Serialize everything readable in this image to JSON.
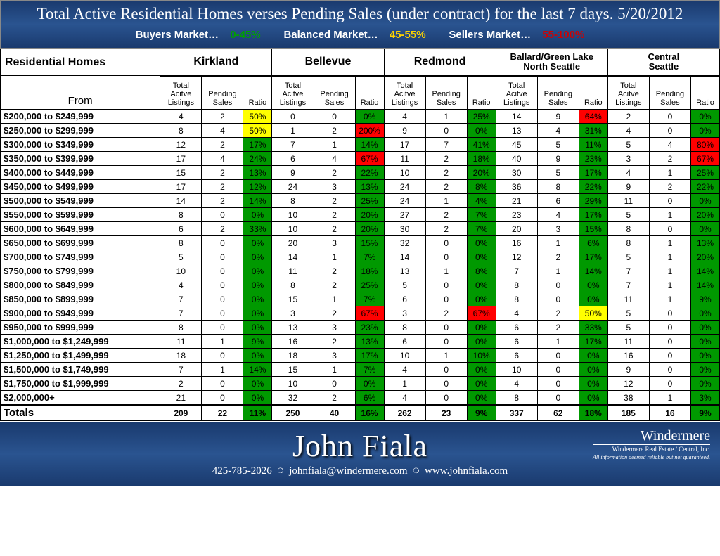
{
  "header": {
    "title": "Total Active Residential Homes verses Pending Sales (under contract) for the last 7 days. 5/20/2012",
    "buyers_label": "Buyers Market…",
    "buyers_range": "0-45%",
    "balanced_label": "Balanced Market…",
    "balanced_range": "45-55%",
    "sellers_label": "Sellers Market…",
    "sellers_range": "55-100%"
  },
  "table": {
    "corner": "Residential Homes",
    "from_label": "From",
    "sub_listings": "Total Acitve Listings",
    "sub_pending": "Pending Sales",
    "sub_ratio": "Ratio",
    "totals_label": "Totals",
    "regions": [
      {
        "name": "Kirkland"
      },
      {
        "name": "Bellevue"
      },
      {
        "name": "Redmond"
      },
      {
        "name": "Ballard/Green Lake North Seattle",
        "small": true
      },
      {
        "name": "Central Seattle",
        "small": true
      }
    ],
    "ranges": [
      "$200,000 to $249,999",
      "$250,000 to $299,999",
      "$300,000 to $349,999",
      "$350,000 to $399,999",
      "$400,000 to $449,999",
      "$450,000 to $499,999",
      "$500,000 to $549,999",
      "$550,000 to $599,999",
      "$600,000 to $649,999",
      "$650,000 to $699,999",
      "$700,000 to $749,999",
      "$750,000 to $799,999",
      "$800,000 to $849,999",
      "$850,000 to $899,999",
      "$900,000 to $949,999",
      "$950,000 to $999,999",
      "$1,000,000 to $1,249,999",
      "$1,250,000 to $1,499,999",
      "$1,500,000 to $1,749,999",
      "$1,750,000 to $1,999,999",
      "$2,000,000+"
    ],
    "data": [
      [
        [
          4,
          2,
          "50%",
          "y"
        ],
        [
          0,
          0,
          "0%",
          "g"
        ],
        [
          4,
          1,
          "25%",
          "g"
        ],
        [
          14,
          9,
          "64%",
          "r"
        ],
        [
          2,
          0,
          "0%",
          "g"
        ]
      ],
      [
        [
          8,
          4,
          "50%",
          "y"
        ],
        [
          1,
          2,
          "200%",
          "r"
        ],
        [
          9,
          0,
          "0%",
          "g"
        ],
        [
          13,
          4,
          "31%",
          "g"
        ],
        [
          4,
          0,
          "0%",
          "g"
        ]
      ],
      [
        [
          12,
          2,
          "17%",
          "g"
        ],
        [
          7,
          1,
          "14%",
          "g"
        ],
        [
          17,
          7,
          "41%",
          "g"
        ],
        [
          45,
          5,
          "11%",
          "g"
        ],
        [
          5,
          4,
          "80%",
          "r"
        ]
      ],
      [
        [
          17,
          4,
          "24%",
          "g"
        ],
        [
          6,
          4,
          "67%",
          "r"
        ],
        [
          11,
          2,
          "18%",
          "g"
        ],
        [
          40,
          9,
          "23%",
          "g"
        ],
        [
          3,
          2,
          "67%",
          "r"
        ]
      ],
      [
        [
          15,
          2,
          "13%",
          "g"
        ],
        [
          9,
          2,
          "22%",
          "g"
        ],
        [
          10,
          2,
          "20%",
          "g"
        ],
        [
          30,
          5,
          "17%",
          "g"
        ],
        [
          4,
          1,
          "25%",
          "g"
        ]
      ],
      [
        [
          17,
          2,
          "12%",
          "g"
        ],
        [
          24,
          3,
          "13%",
          "g"
        ],
        [
          24,
          2,
          "8%",
          "g"
        ],
        [
          36,
          8,
          "22%",
          "g"
        ],
        [
          9,
          2,
          "22%",
          "g"
        ]
      ],
      [
        [
          14,
          2,
          "14%",
          "g"
        ],
        [
          8,
          2,
          "25%",
          "g"
        ],
        [
          24,
          1,
          "4%",
          "g"
        ],
        [
          21,
          6,
          "29%",
          "g"
        ],
        [
          11,
          0,
          "0%",
          "g"
        ]
      ],
      [
        [
          8,
          0,
          "0%",
          "g"
        ],
        [
          10,
          2,
          "20%",
          "g"
        ],
        [
          27,
          2,
          "7%",
          "g"
        ],
        [
          23,
          4,
          "17%",
          "g"
        ],
        [
          5,
          1,
          "20%",
          "g"
        ]
      ],
      [
        [
          6,
          2,
          "33%",
          "g"
        ],
        [
          10,
          2,
          "20%",
          "g"
        ],
        [
          30,
          2,
          "7%",
          "g"
        ],
        [
          20,
          3,
          "15%",
          "g"
        ],
        [
          8,
          0,
          "0%",
          "g"
        ]
      ],
      [
        [
          8,
          0,
          "0%",
          "g"
        ],
        [
          20,
          3,
          "15%",
          "g"
        ],
        [
          32,
          0,
          "0%",
          "g"
        ],
        [
          16,
          1,
          "6%",
          "g"
        ],
        [
          8,
          1,
          "13%",
          "g"
        ]
      ],
      [
        [
          5,
          0,
          "0%",
          "g"
        ],
        [
          14,
          1,
          "7%",
          "g"
        ],
        [
          14,
          0,
          "0%",
          "g"
        ],
        [
          12,
          2,
          "17%",
          "g"
        ],
        [
          5,
          1,
          "20%",
          "g"
        ]
      ],
      [
        [
          10,
          0,
          "0%",
          "g"
        ],
        [
          11,
          2,
          "18%",
          "g"
        ],
        [
          13,
          1,
          "8%",
          "g"
        ],
        [
          7,
          1,
          "14%",
          "g"
        ],
        [
          7,
          1,
          "14%",
          "g"
        ]
      ],
      [
        [
          4,
          0,
          "0%",
          "g"
        ],
        [
          8,
          2,
          "25%",
          "g"
        ],
        [
          5,
          0,
          "0%",
          "g"
        ],
        [
          8,
          0,
          "0%",
          "g"
        ],
        [
          7,
          1,
          "14%",
          "g"
        ]
      ],
      [
        [
          7,
          0,
          "0%",
          "g"
        ],
        [
          15,
          1,
          "7%",
          "g"
        ],
        [
          6,
          0,
          "0%",
          "g"
        ],
        [
          8,
          0,
          "0%",
          "g"
        ],
        [
          11,
          1,
          "9%",
          "g"
        ]
      ],
      [
        [
          7,
          0,
          "0%",
          "g"
        ],
        [
          3,
          2,
          "67%",
          "r"
        ],
        [
          3,
          2,
          "67%",
          "r"
        ],
        [
          4,
          2,
          "50%",
          "y"
        ],
        [
          5,
          0,
          "0%",
          "g"
        ]
      ],
      [
        [
          8,
          0,
          "0%",
          "g"
        ],
        [
          13,
          3,
          "23%",
          "g"
        ],
        [
          8,
          0,
          "0%",
          "g"
        ],
        [
          6,
          2,
          "33%",
          "g"
        ],
        [
          5,
          0,
          "0%",
          "g"
        ]
      ],
      [
        [
          11,
          1,
          "9%",
          "g"
        ],
        [
          16,
          2,
          "13%",
          "g"
        ],
        [
          6,
          0,
          "0%",
          "g"
        ],
        [
          6,
          1,
          "17%",
          "g"
        ],
        [
          11,
          0,
          "0%",
          "g"
        ]
      ],
      [
        [
          18,
          0,
          "0%",
          "g"
        ],
        [
          18,
          3,
          "17%",
          "g"
        ],
        [
          10,
          1,
          "10%",
          "g"
        ],
        [
          6,
          0,
          "0%",
          "g"
        ],
        [
          16,
          0,
          "0%",
          "g"
        ]
      ],
      [
        [
          7,
          1,
          "14%",
          "g"
        ],
        [
          15,
          1,
          "7%",
          "g"
        ],
        [
          4,
          0,
          "0%",
          "g"
        ],
        [
          10,
          0,
          "0%",
          "g"
        ],
        [
          9,
          0,
          "0%",
          "g"
        ]
      ],
      [
        [
          2,
          0,
          "0%",
          "g"
        ],
        [
          10,
          0,
          "0%",
          "g"
        ],
        [
          1,
          0,
          "0%",
          "g"
        ],
        [
          4,
          0,
          "0%",
          "g"
        ],
        [
          12,
          0,
          "0%",
          "g"
        ]
      ],
      [
        [
          21,
          0,
          "0%",
          "g"
        ],
        [
          32,
          2,
          "6%",
          "g"
        ],
        [
          4,
          0,
          "0%",
          "g"
        ],
        [
          8,
          0,
          "0%",
          "g"
        ],
        [
          38,
          1,
          "3%",
          "g"
        ]
      ]
    ],
    "totals": [
      [
        209,
        22,
        "11%",
        "g"
      ],
      [
        250,
        40,
        "16%",
        "g"
      ],
      [
        262,
        23,
        "9%",
        "g"
      ],
      [
        337,
        62,
        "18%",
        "g"
      ],
      [
        185,
        16,
        "9%",
        "g"
      ]
    ]
  },
  "footer": {
    "name": "John Fiala",
    "phone": "425-785-2026",
    "email": "johnfiala@windermere.com",
    "web": "www.johnfiala.com",
    "logo_name": "Windermere",
    "logo_sub": "Windermere Real Estate / Central, Inc.",
    "logo_disc": "All information deemed reliable but not guaranteed."
  },
  "colors": {
    "green": "#009900",
    "yellow": "#ffff00",
    "red": "#ff0000"
  }
}
